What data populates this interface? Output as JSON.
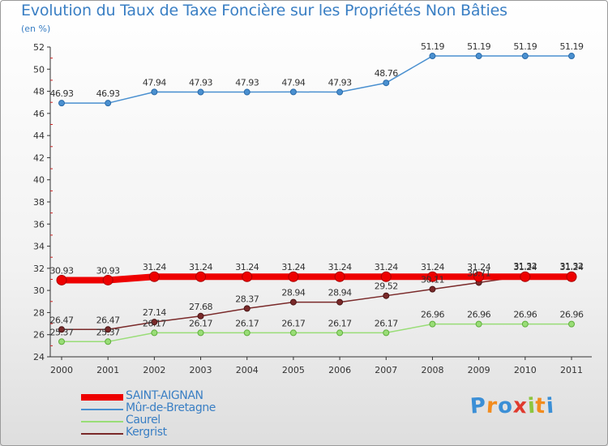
{
  "header": {
    "title": "Evolution du Taux de Taxe Foncière sur les Propriétés Non Bâties",
    "unit": "(en %)"
  },
  "logo": {
    "letters": [
      "P",
      "r",
      "o",
      "x",
      "i",
      "t",
      "i"
    ],
    "colors": [
      "#3b8fd6",
      "#f28c1e",
      "#3b8fd6",
      "#e03a2e",
      "#8dc63f",
      "#f28c1e",
      "#3b8fd6"
    ]
  },
  "chart_data": {
    "type": "line",
    "title": "Evolution du Taux de Taxe Foncière sur les Propriétés Non Bâties",
    "ylabel": "(en %)",
    "xlabel": "",
    "ylim": [
      24,
      52
    ],
    "yticks": [
      24,
      26,
      28,
      30,
      32,
      34,
      36,
      38,
      40,
      42,
      44,
      46,
      48,
      50,
      52
    ],
    "grid": false,
    "legend_position": "bottom-left",
    "categories": [
      "2000",
      "2001",
      "2002",
      "2003",
      "2004",
      "2005",
      "2006",
      "2007",
      "2008",
      "2009",
      "2010",
      "2011"
    ],
    "series": [
      {
        "name": "SAINT-AIGNAN",
        "color": "#ee0000",
        "values": [
          30.93,
          30.93,
          31.24,
          31.24,
          31.24,
          31.24,
          31.24,
          31.24,
          31.24,
          31.24,
          31.24,
          31.24
        ],
        "labels": [
          "30.93",
          "30.93",
          "31.24",
          "31.24",
          "31.24",
          "31.24",
          "31.24",
          "31.24",
          "31.24",
          "31.24",
          "31.24",
          "31.24"
        ]
      },
      {
        "name": "Mûr-de-Bretagne",
        "color": "#4a90d0",
        "values": [
          46.93,
          46.93,
          47.94,
          47.93,
          47.93,
          47.94,
          47.93,
          48.76,
          51.19,
          51.19,
          51.19,
          51.19
        ],
        "labels": [
          "46.93",
          "46.93",
          "47.94",
          "47.93",
          "47.93",
          "47.94",
          "47.93",
          "48.76",
          "51.19",
          "51.19",
          "51.19",
          "51.19"
        ]
      },
      {
        "name": "Caurel",
        "color": "#99dd77",
        "values": [
          25.37,
          25.37,
          26.17,
          26.17,
          26.17,
          26.17,
          26.17,
          26.17,
          26.96,
          26.96,
          26.96,
          26.96
        ],
        "labels": [
          "25.37",
          "25.37",
          "26.17",
          "26.17",
          "26.17",
          "26.17",
          "26.17",
          "26.17",
          "26.96",
          "26.96",
          "26.96",
          "26.96"
        ]
      },
      {
        "name": "Kergrist",
        "color": "#7a2a2a",
        "values": [
          26.47,
          26.47,
          27.14,
          27.68,
          28.37,
          28.94,
          28.94,
          29.52,
          30.11,
          30.71,
          31.32,
          31.32
        ],
        "labels": [
          "26.47",
          "26.47",
          "27.14",
          "27.68",
          "28.37",
          "28.94",
          "28.94",
          "29.52",
          "30.11",
          "30.71",
          "31.32",
          "31.32"
        ]
      }
    ]
  }
}
